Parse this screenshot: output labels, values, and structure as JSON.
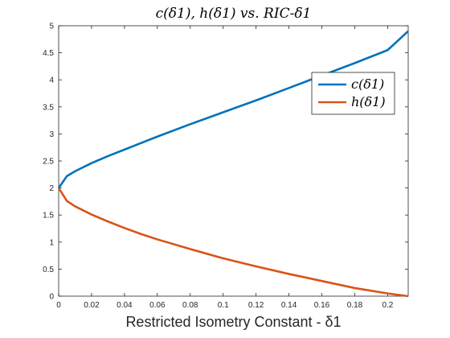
{
  "chart_data": {
    "type": "line",
    "title": "c(δ1), h(δ1) vs. RIC-δ1",
    "xlabel": "Restricted Isometry Constant - δ1",
    "ylabel": "",
    "xlim": [
      0,
      0.2125
    ],
    "ylim": [
      0,
      5
    ],
    "xticks": [
      "0",
      "0.02",
      "0.04",
      "0.06",
      "0.08",
      "0.1",
      "0.12",
      "0.14",
      "0.16",
      "0.18",
      "0.2"
    ],
    "yticks": [
      "0",
      "0.5",
      "1",
      "1.5",
      "2",
      "2.5",
      "3",
      "3.5",
      "4",
      "4.5",
      "5"
    ],
    "legend_position": "top-right",
    "grid": false,
    "series": [
      {
        "name": "c(δ1)",
        "color": "#0072BD",
        "x": [
          0,
          0.005,
          0.01,
          0.02,
          0.03,
          0.04,
          0.05,
          0.06,
          0.08,
          0.1,
          0.12,
          0.14,
          0.16,
          0.18,
          0.2,
          0.2125
        ],
        "y": [
          2.0,
          2.22,
          2.31,
          2.46,
          2.59,
          2.71,
          2.83,
          2.95,
          3.18,
          3.4,
          3.62,
          3.85,
          4.08,
          4.31,
          4.55,
          4.9
        ]
      },
      {
        "name": "h(δ1)",
        "color": "#D95319",
        "x": [
          0,
          0.005,
          0.01,
          0.02,
          0.03,
          0.04,
          0.05,
          0.06,
          0.08,
          0.1,
          0.12,
          0.14,
          0.16,
          0.18,
          0.2,
          0.2125
        ],
        "y": [
          2.0,
          1.76,
          1.66,
          1.51,
          1.38,
          1.26,
          1.15,
          1.05,
          0.87,
          0.7,
          0.55,
          0.41,
          0.28,
          0.15,
          0.05,
          0.0
        ]
      }
    ]
  }
}
